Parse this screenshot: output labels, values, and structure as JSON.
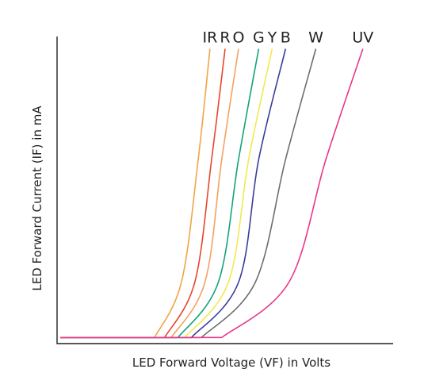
{
  "chart_data": {
    "type": "line",
    "title": "",
    "xlabel": "LED Forward Voltage (VF) in Volts",
    "ylabel": "LED Forward Current (IF) in mA",
    "xlim": [
      0,
      10
    ],
    "ylim": [
      0,
      10
    ],
    "grid": false,
    "legend": "none",
    "series_labels_on_chart": true,
    "series": [
      {
        "name": "IR",
        "color": "#F2A444",
        "values": [
          {
            "x": 2.9,
            "y": 0.2
          },
          {
            "x": 3.7,
            "y": 2
          },
          {
            "x": 4.2,
            "y": 6
          },
          {
            "x": 4.55,
            "y": 9.6
          }
        ]
      },
      {
        "name": "R",
        "color": "#E8452C",
        "values": [
          {
            "x": 3.2,
            "y": 0.2
          },
          {
            "x": 4.1,
            "y": 2
          },
          {
            "x": 4.6,
            "y": 6
          },
          {
            "x": 5.0,
            "y": 9.6
          }
        ]
      },
      {
        "name": "O",
        "color": "#F4A261",
        "values": [
          {
            "x": 3.4,
            "y": 0.2
          },
          {
            "x": 4.4,
            "y": 2
          },
          {
            "x": 4.9,
            "y": 6
          },
          {
            "x": 5.4,
            "y": 9.6
          }
        ]
      },
      {
        "name": "G",
        "color": "#13A37A",
        "values": [
          {
            "x": 3.6,
            "y": 0.2
          },
          {
            "x": 4.8,
            "y": 2
          },
          {
            "x": 5.4,
            "y": 6
          },
          {
            "x": 6.0,
            "y": 9.6
          }
        ]
      },
      {
        "name": "Y",
        "color": "#F2E94E",
        "values": [
          {
            "x": 3.8,
            "y": 0.2
          },
          {
            "x": 5.1,
            "y": 2
          },
          {
            "x": 5.7,
            "y": 6
          },
          {
            "x": 6.4,
            "y": 9.6
          }
        ]
      },
      {
        "name": "B",
        "color": "#3C3C9B",
        "values": [
          {
            "x": 4.0,
            "y": 0.2
          },
          {
            "x": 5.4,
            "y": 2
          },
          {
            "x": 6.0,
            "y": 6
          },
          {
            "x": 6.8,
            "y": 9.6
          }
        ]
      },
      {
        "name": "W",
        "color": "#6E6E6E",
        "values": [
          {
            "x": 4.3,
            "y": 0.2
          },
          {
            "x": 5.9,
            "y": 2
          },
          {
            "x": 6.8,
            "y": 6
          },
          {
            "x": 7.7,
            "y": 9.6
          }
        ]
      },
      {
        "name": "UV",
        "color": "#E8378A",
        "values": [
          {
            "x": 4.9,
            "y": 0.2
          },
          {
            "x": 6.9,
            "y": 2
          },
          {
            "x": 8.0,
            "y": 6
          },
          {
            "x": 9.1,
            "y": 9.6
          }
        ]
      }
    ]
  }
}
